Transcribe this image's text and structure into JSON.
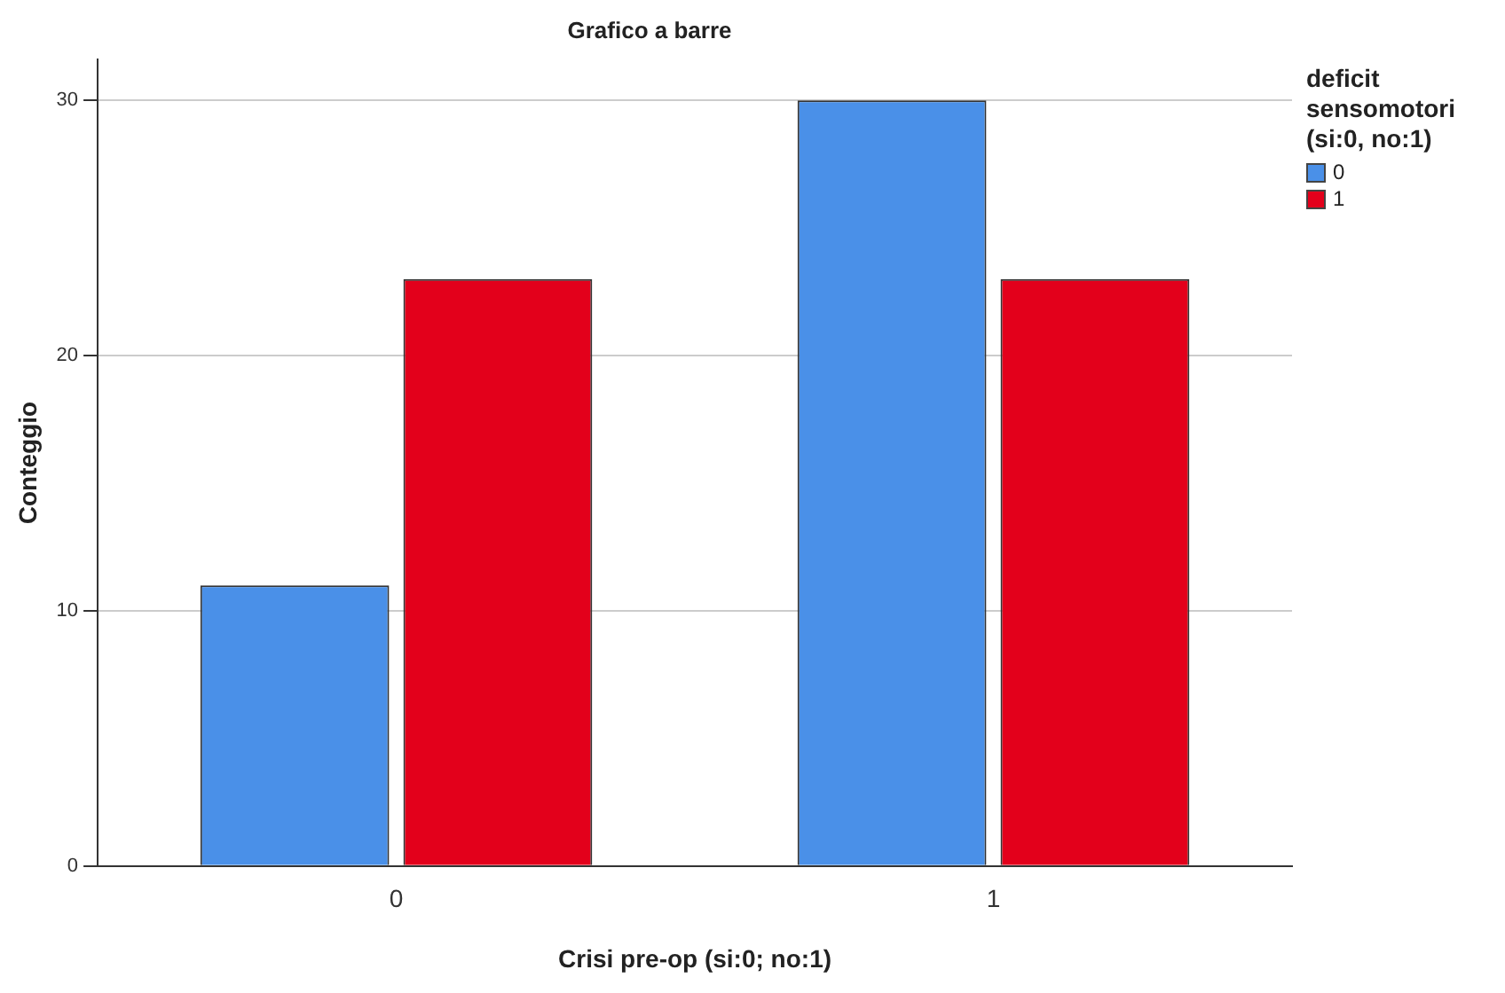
{
  "chart_data": {
    "type": "bar",
    "title": "Grafico a barre",
    "xlabel": "Crisi pre-op (si:0; no:1)",
    "ylabel": "Conteggio",
    "legend_title": "deficit sensomotori (si:0, no:1)",
    "categories": [
      "0",
      "1"
    ],
    "series": [
      {
        "name": "0",
        "color": "#4a90e8",
        "values": [
          11,
          30
        ]
      },
      {
        "name": "1",
        "color": "#e3001b",
        "values": [
          23,
          23
        ]
      }
    ],
    "ylim": [
      0,
      31.6
    ],
    "yticks": [
      0,
      10,
      20,
      30
    ],
    "grid": "y",
    "legend": "top right"
  }
}
